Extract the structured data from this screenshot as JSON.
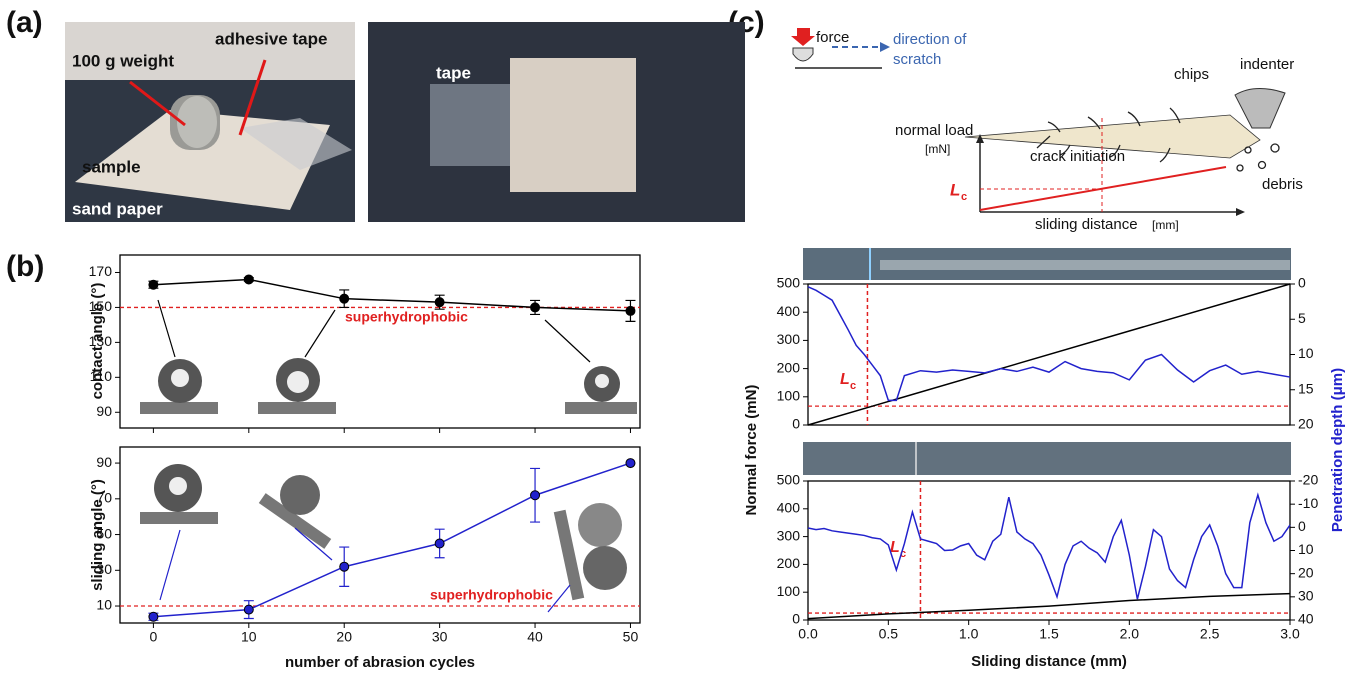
{
  "panel_labels": [
    "(a)",
    "(b)",
    "(c)"
  ],
  "photo": {
    "weight": "100 g weight",
    "adhesive": "adhesive tape",
    "sample": "sample",
    "sand_paper": "sand paper",
    "tape": "tape"
  },
  "diagram": {
    "force": "force",
    "direction": [
      "direction of",
      "scratch"
    ],
    "chips": "chips",
    "indenter": "indenter",
    "normal_load": "normal load",
    "load_unit": "[mN]",
    "crack": "crack initiation",
    "lc": "L",
    "lc_sub": "c",
    "debris": "debris",
    "sliding": "sliding distance",
    "sliding_unit": "[mm]"
  },
  "chart_data": [
    {
      "type": "line",
      "ylabel": "contact angle (°)",
      "x": [
        0,
        10,
        20,
        30,
        40,
        50
      ],
      "xlim": [
        -3.5,
        51
      ],
      "xticks": [
        0,
        10,
        20,
        30,
        40,
        50
      ],
      "ylim": [
        81,
        180
      ],
      "yticks": [
        90,
        110,
        130,
        150,
        170
      ],
      "series": [
        {
          "color": "#000000",
          "values": [
            163,
            166,
            155,
            153,
            150,
            148
          ],
          "errors": [
            2,
            1,
            5,
            4,
            4,
            6
          ]
        }
      ],
      "threshold": 150,
      "threshold_label": "superhydrophobic",
      "threshold_color": "#e02020"
    },
    {
      "type": "line",
      "ylabel": "sliding angle (°)",
      "xlabel": "number of abrasion cycles",
      "x": [
        0,
        10,
        20,
        30,
        40,
        50
      ],
      "xlim": [
        -3.5,
        51
      ],
      "xticks": [
        0,
        10,
        20,
        30,
        40,
        50
      ],
      "ylim": [
        0.5,
        99
      ],
      "yticks": [
        10,
        30,
        50,
        70,
        90
      ],
      "series": [
        {
          "color": "#2222cc",
          "values": [
            4,
            8,
            32,
            45,
            72,
            90
          ],
          "errors": [
            2,
            5,
            11,
            8,
            15,
            0
          ]
        }
      ],
      "threshold": 10,
      "threshold_label": "superhydrophobic",
      "threshold_color": "#e02020"
    },
    {
      "type": "dual-line",
      "xlim": [
        0,
        3
      ],
      "ylim": [
        0,
        500
      ],
      "yticks": [
        0,
        100,
        200,
        300,
        400,
        500
      ],
      "y2lim": [
        20,
        0
      ],
      "y2ticks": [
        0,
        5,
        10,
        15,
        20
      ],
      "series": [
        {
          "color": "#000000",
          "x": [
            0,
            3
          ],
          "values": [
            0,
            500
          ]
        },
        {
          "color": "#2222cc",
          "axis": "y2",
          "x": [
            0,
            0.05,
            0.1,
            0.15,
            0.2,
            0.25,
            0.3,
            0.35,
            0.4,
            0.45,
            0.5,
            0.55,
            0.6,
            0.7,
            0.8,
            0.9,
            1.0,
            1.1,
            1.2,
            1.3,
            1.4,
            1.5,
            1.6,
            1.7,
            1.8,
            1.9,
            2.0,
            2.1,
            2.2,
            2.3,
            2.4,
            2.5,
            2.6,
            2.7,
            2.8,
            2.9,
            3.0
          ],
          "values": [
            0.4,
            0.9,
            1.6,
            2.3,
            4.4,
            6.5,
            8.7,
            10,
            11.5,
            13,
            16.5,
            16.5,
            13,
            12.3,
            12.5,
            12.2,
            12.4,
            12.6,
            12,
            12.4,
            11.8,
            12.5,
            11,
            12,
            12.4,
            12.6,
            13.6,
            10.8,
            10,
            12.2,
            13.9,
            12.3,
            11.5,
            12.8,
            12.4,
            12.8,
            13.2
          ]
        }
      ],
      "critical": {
        "x": 0.37,
        "y": 67,
        "label": "L",
        "sub": "c",
        "color": "#e02020"
      }
    },
    {
      "type": "dual-line",
      "ylabel": "Normal force (mN)",
      "y2label": "Penetration depth (μm)",
      "xlabel": "Sliding distance (mm)",
      "xlim": [
        0,
        3
      ],
      "xticks": [
        {
          "value": 0,
          "label": "0.0"
        },
        {
          "value": 0.5,
          "label": "0.5"
        },
        {
          "value": 1,
          "label": "1.0"
        },
        {
          "value": 1.5,
          "label": "1.5"
        },
        {
          "value": 2,
          "label": "2.0"
        },
        {
          "value": 2.5,
          "label": "2.5"
        },
        {
          "value": 3,
          "label": "3.0"
        }
      ],
      "ylim": [
        0,
        500
      ],
      "yticks": [
        0,
        100,
        200,
        300,
        400,
        500
      ],
      "y2lim": [
        40,
        -20
      ],
      "y2ticks": [
        -20,
        -10,
        0,
        10,
        20,
        30,
        40
      ],
      "series": [
        {
          "color": "#000000",
          "x": [
            0,
            0.5,
            1,
            1.5,
            2,
            2.5,
            3
          ],
          "values": [
            5,
            22,
            35,
            50,
            70,
            85,
            95
          ]
        },
        {
          "color": "#2222cc",
          "axis": "y2",
          "x": [
            0,
            0.05,
            0.1,
            0.15,
            0.2,
            0.25,
            0.3,
            0.35,
            0.4,
            0.45,
            0.5,
            0.55,
            0.6,
            0.65,
            0.7,
            0.75,
            0.8,
            0.85,
            0.9,
            0.95,
            1.0,
            1.05,
            1.1,
            1.15,
            1.2,
            1.25,
            1.3,
            1.35,
            1.4,
            1.45,
            1.5,
            1.55,
            1.6,
            1.65,
            1.7,
            1.75,
            1.8,
            1.85,
            1.9,
            1.95,
            2.0,
            2.05,
            2.1,
            2.15,
            2.2,
            2.25,
            2.3,
            2.35,
            2.4,
            2.45,
            2.5,
            2.55,
            2.6,
            2.65,
            2.7,
            2.75,
            2.8,
            2.85,
            2.9,
            2.95,
            3.0
          ],
          "values": [
            0.3,
            1,
            0.5,
            1.5,
            2,
            2.5,
            3,
            3.5,
            4.5,
            5,
            7.6,
            18.4,
            7,
            -6.6,
            5,
            6,
            7,
            10,
            9.8,
            8,
            7,
            12,
            14,
            6,
            3,
            -13,
            2,
            5,
            7,
            12,
            20.6,
            30,
            16,
            8,
            6,
            9,
            11,
            15,
            4,
            -3,
            12,
            31,
            17,
            1,
            4,
            18,
            23,
            26,
            14,
            4,
            -1,
            8,
            20,
            26,
            26,
            -2,
            -14,
            -2,
            6,
            4,
            -1
          ]
        }
      ],
      "critical": {
        "x": 0.7,
        "y": 25,
        "label": "L",
        "sub": "c",
        "color": "#e02020"
      }
    }
  ]
}
